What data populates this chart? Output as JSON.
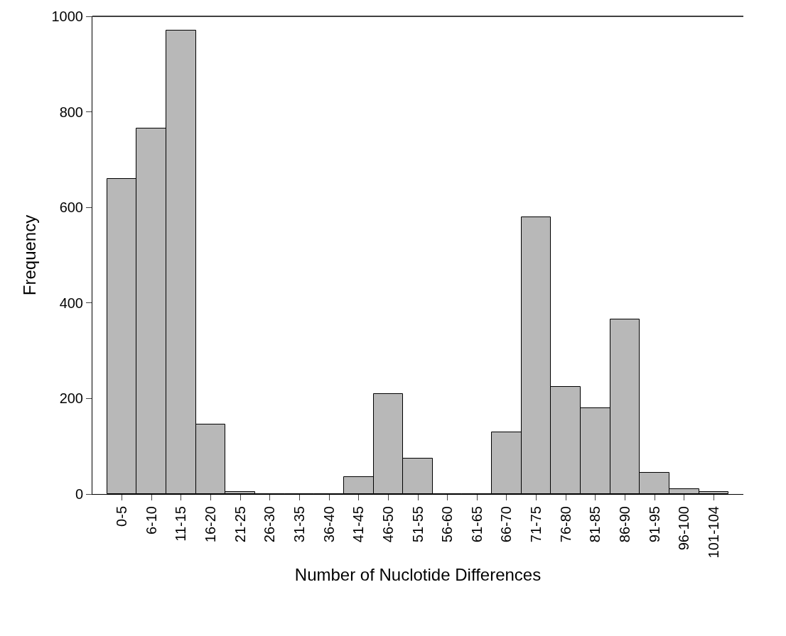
{
  "chart_data": {
    "type": "bar",
    "xlabel": "Number of Nuclotide Differences",
    "ylabel": "Frequency",
    "categories": [
      "0-5",
      "6-10",
      "11-15",
      "16-20",
      "21-25",
      "26-30",
      "31-35",
      "36-40",
      "41-45",
      "46-50",
      "51-55",
      "56-60",
      "61-65",
      "66-70",
      "71-75",
      "76-80",
      "81-85",
      "86-90",
      "91-95",
      "96-100",
      "101-104"
    ],
    "values": [
      660,
      765,
      970,
      145,
      5,
      0,
      0,
      0,
      35,
      210,
      75,
      0,
      0,
      130,
      580,
      225,
      180,
      365,
      45,
      10,
      5
    ],
    "color": "#b8b8b8",
    "ylim": [
      0,
      1000
    ],
    "yticks": [
      0,
      200,
      400,
      600,
      800,
      1000
    ]
  }
}
